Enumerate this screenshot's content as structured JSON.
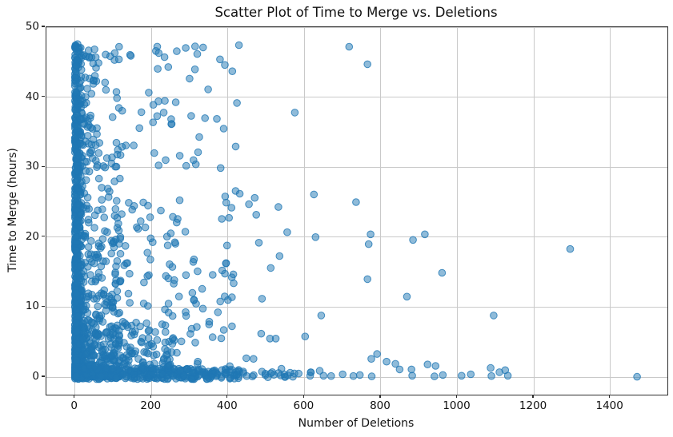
{
  "chart_data": {
    "type": "scatter",
    "title": "Scatter Plot of Time to Merge vs. Deletions",
    "xlabel": "Number of Deletions",
    "ylabel": "Time to Merge (hours)",
    "xlim": [
      -74.7,
      1549.3
    ],
    "ylim": [
      -2.51,
      50.0
    ],
    "x_tick_values": [
      0,
      200,
      400,
      600,
      800,
      1000,
      1200,
      1400
    ],
    "x_tick_labels": [
      "0",
      "200",
      "400",
      "600",
      "800",
      "1000",
      "1200",
      "1400"
    ],
    "y_tick_values": [
      0,
      10,
      20,
      30,
      40,
      50
    ],
    "y_tick_labels": [
      "0",
      "10",
      "20",
      "30",
      "40",
      "50"
    ],
    "grid": true,
    "legend_position": "none",
    "marker": {
      "color": "#1f77b4",
      "fill_alpha": 0.5,
      "edge_alpha": 0.8,
      "radius_px": 4.3
    },
    "grid_color": "#c9c9c9",
    "spine_color": "#2e2e2e",
    "text_color": "#111111",
    "outlier_points": [
      [
        717,
        47.2
      ],
      [
        765,
        44.7
      ],
      [
        575,
        37.8
      ],
      [
        625,
        26.1
      ],
      [
        470,
        25.6
      ],
      [
        455,
        24.7
      ],
      [
        532,
        24.3
      ],
      [
        735,
        25.0
      ],
      [
        392,
        44.6
      ],
      [
        335,
        47.1
      ],
      [
        219,
        46.3
      ],
      [
        244,
        44.3
      ],
      [
        146,
        45.9
      ],
      [
        115,
        45.4
      ],
      [
        104,
        46.3
      ],
      [
        205,
        38.9
      ],
      [
        232,
        37.8
      ],
      [
        325,
        34.3
      ],
      [
        215,
        37.3
      ],
      [
        310,
        31.0
      ],
      [
        316,
        30.4
      ],
      [
        420,
        26.6
      ],
      [
        431,
        26.2
      ],
      [
        474,
        23.2
      ],
      [
        555,
        20.7
      ],
      [
        629,
        20.0
      ],
      [
        481,
        19.2
      ],
      [
        773,
        20.4
      ],
      [
        768,
        19.0
      ],
      [
        884,
        19.6
      ],
      [
        915,
        20.4
      ],
      [
        535,
        17.3
      ],
      [
        512,
        15.6
      ],
      [
        960,
        14.9
      ],
      [
        765,
        14.0
      ],
      [
        868,
        11.5
      ],
      [
        1295,
        18.3
      ],
      [
        489,
        11.2
      ],
      [
        1095,
        8.8
      ],
      [
        644,
        8.8
      ],
      [
        400,
        11.0
      ],
      [
        415,
        13.4
      ],
      [
        487,
        6.2
      ],
      [
        510,
        5.5
      ],
      [
        525,
        5.5
      ],
      [
        602,
        5.8
      ],
      [
        775,
        2.6
      ],
      [
        790,
        3.3
      ],
      [
        815,
        2.2
      ],
      [
        838,
        1.9
      ],
      [
        849,
        1.1
      ],
      [
        880,
        1.1
      ],
      [
        882,
        0.2
      ],
      [
        922,
        1.8
      ],
      [
        943,
        1.6
      ],
      [
        1011,
        0.2
      ],
      [
        1087,
        1.3
      ],
      [
        1089,
        0.15
      ],
      [
        1110,
        0.7
      ],
      [
        1125,
        1.0
      ],
      [
        1132,
        0.2
      ],
      [
        1470,
        0.05
      ],
      [
        448,
        2.7
      ],
      [
        467,
        2.6
      ],
      [
        440,
        0.8
      ],
      [
        650,
        0.2
      ],
      [
        776,
        0.1
      ],
      [
        700,
        0.4
      ],
      [
        728,
        0.15
      ],
      [
        745,
        0.3
      ],
      [
        640,
        0.9
      ],
      [
        540,
        1.2
      ],
      [
        585,
        0.5
      ],
      [
        615,
        0.2
      ],
      [
        670,
        0.15
      ],
      [
        940,
        0.1
      ],
      [
        962,
        0.3
      ],
      [
        1035,
        0.4
      ]
    ],
    "dense_cloud": {
      "note": "Approximately 1900 additional points form a dense L-shaped cloud hugging both axes (deletions mostly < 430, hours mostly < 30, extremely dense for deletions < 20 and for hours < 1.5, max hours ~47.6). Reproduced via these density bands with a seeded PRNG.",
      "seed": 42,
      "bands": [
        {
          "count": 600,
          "del_min": 0,
          "del_max": 18,
          "del_pow": 2.2,
          "hr_min": 0,
          "hr_max": 47.6,
          "hr_pow": 2.0
        },
        {
          "count": 420,
          "del_min": 4,
          "del_max": 120,
          "del_pow": 1.8,
          "hr_min": 0,
          "hr_max": 34,
          "hr_pow": 1.8
        },
        {
          "count": 380,
          "del_min": 0,
          "del_max": 430,
          "del_pow": 1.6,
          "hr_min": -0.3,
          "hr_max": 1.2,
          "hr_pow": 1.0
        },
        {
          "count": 160,
          "del_min": 20,
          "del_max": 260,
          "del_pow": 1.5,
          "hr_min": 1,
          "hr_max": 8,
          "hr_pow": 1.4
        },
        {
          "count": 130,
          "del_min": 100,
          "del_max": 430,
          "del_pow": 1.2,
          "hr_min": 1,
          "hr_max": 26,
          "hr_pow": 1.2
        },
        {
          "count": 90,
          "del_min": 0,
          "del_max": 60,
          "del_pow": 1.6,
          "hr_min": 30,
          "hr_max": 47.5,
          "hr_pow": 0.9
        },
        {
          "count": 55,
          "del_min": 60,
          "del_max": 430,
          "del_pow": 1.2,
          "hr_min": 28,
          "hr_max": 47.5,
          "hr_pow": 1.0
        },
        {
          "count": 22,
          "del_min": 430,
          "del_max": 620,
          "del_pow": 1.0,
          "hr_min": -0.2,
          "hr_max": 0.8,
          "hr_pow": 1.0
        }
      ]
    }
  }
}
